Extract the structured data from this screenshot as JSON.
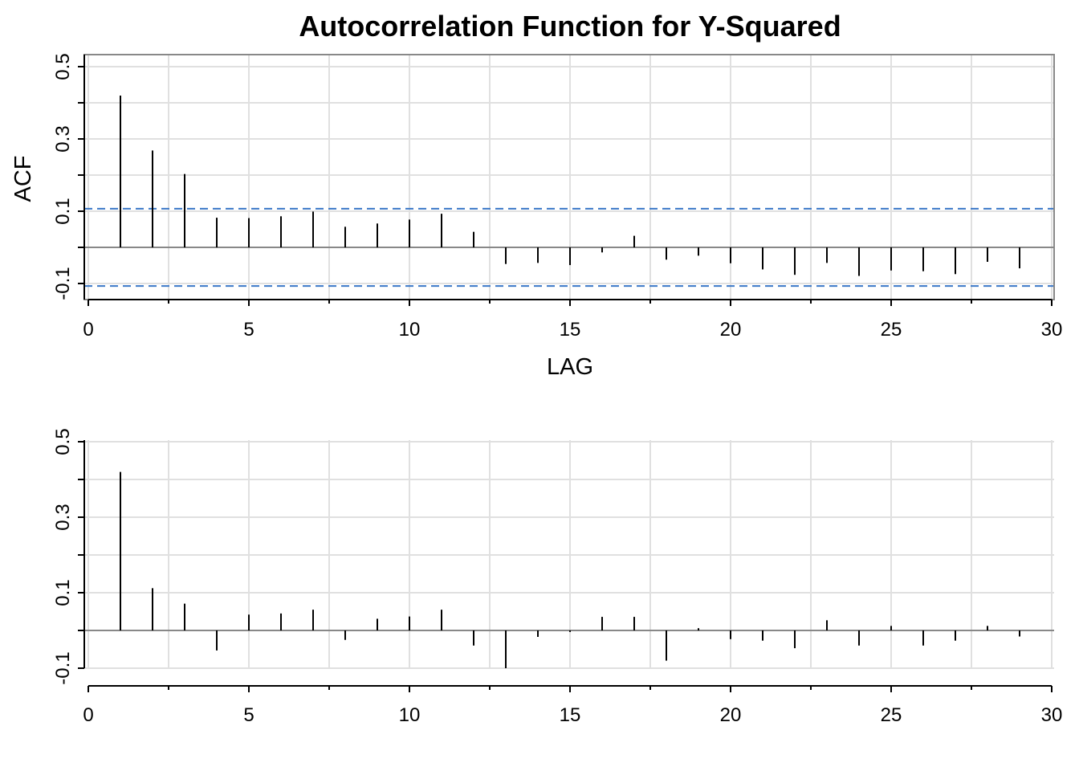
{
  "chart_data": [
    {
      "type": "bar",
      "subtype": "acf-spikes",
      "title": "Autocorrelation Function for Y-Squared",
      "xlabel": "LAG",
      "ylabel": "ACF",
      "xlim": [
        0,
        30
      ],
      "ylim": [
        -0.15,
        0.55
      ],
      "xticks": [
        "0",
        "5",
        "10",
        "15",
        "20",
        "25",
        "30"
      ],
      "yticks": [
        "-0.1",
        "0.1",
        "0.3",
        "0.5"
      ],
      "grid": true,
      "confidence_bound": 0.107,
      "lags": [
        1,
        2,
        3,
        4,
        5,
        6,
        7,
        8,
        9,
        10,
        11,
        12,
        13,
        14,
        15,
        16,
        17,
        18,
        19,
        20,
        21,
        22,
        23,
        24,
        25,
        26,
        27,
        28,
        29
      ],
      "values": [
        0.42,
        0.268,
        0.203,
        0.082,
        0.081,
        0.086,
        0.099,
        0.057,
        0.066,
        0.077,
        0.093,
        0.043,
        -0.046,
        -0.043,
        -0.049,
        -0.014,
        0.032,
        -0.034,
        -0.023,
        -0.044,
        -0.061,
        -0.076,
        -0.043,
        -0.079,
        -0.064,
        -0.066,
        -0.074,
        -0.04,
        -0.058
      ],
      "colors": {
        "spike": "#000000",
        "bound": "#3b78c8",
        "grid": "#e0e0e0",
        "zero": "#888888"
      }
    },
    {
      "type": "bar",
      "subtype": "pacf-spikes",
      "title": "",
      "xlabel": "",
      "ylabel": "",
      "xlim": [
        0,
        30
      ],
      "ylim": [
        -0.1,
        0.52
      ],
      "xticks": [
        "0",
        "5",
        "10",
        "15",
        "20",
        "25",
        "30"
      ],
      "yticks": [
        "-0.1",
        "0.1",
        "0.3",
        "0.5"
      ],
      "grid": true,
      "lags": [
        1,
        2,
        3,
        4,
        5,
        6,
        7,
        8,
        9,
        10,
        11,
        12,
        13,
        14,
        15,
        16,
        17,
        18,
        19,
        20,
        21,
        22,
        23,
        24,
        25,
        26,
        27,
        28,
        29
      ],
      "values": [
        0.42,
        0.112,
        0.071,
        -0.053,
        0.042,
        0.045,
        0.055,
        -0.025,
        0.031,
        0.037,
        0.055,
        -0.04,
        -0.1,
        -0.017,
        -0.004,
        0.036,
        0.036,
        -0.08,
        0.006,
        -0.023,
        -0.027,
        -0.047,
        0.027,
        -0.04,
        0.012,
        -0.04,
        -0.027,
        0.012,
        -0.016
      ],
      "colors": {
        "spike": "#000000",
        "grid": "#e0e0e0",
        "zero": "#888888"
      }
    }
  ]
}
